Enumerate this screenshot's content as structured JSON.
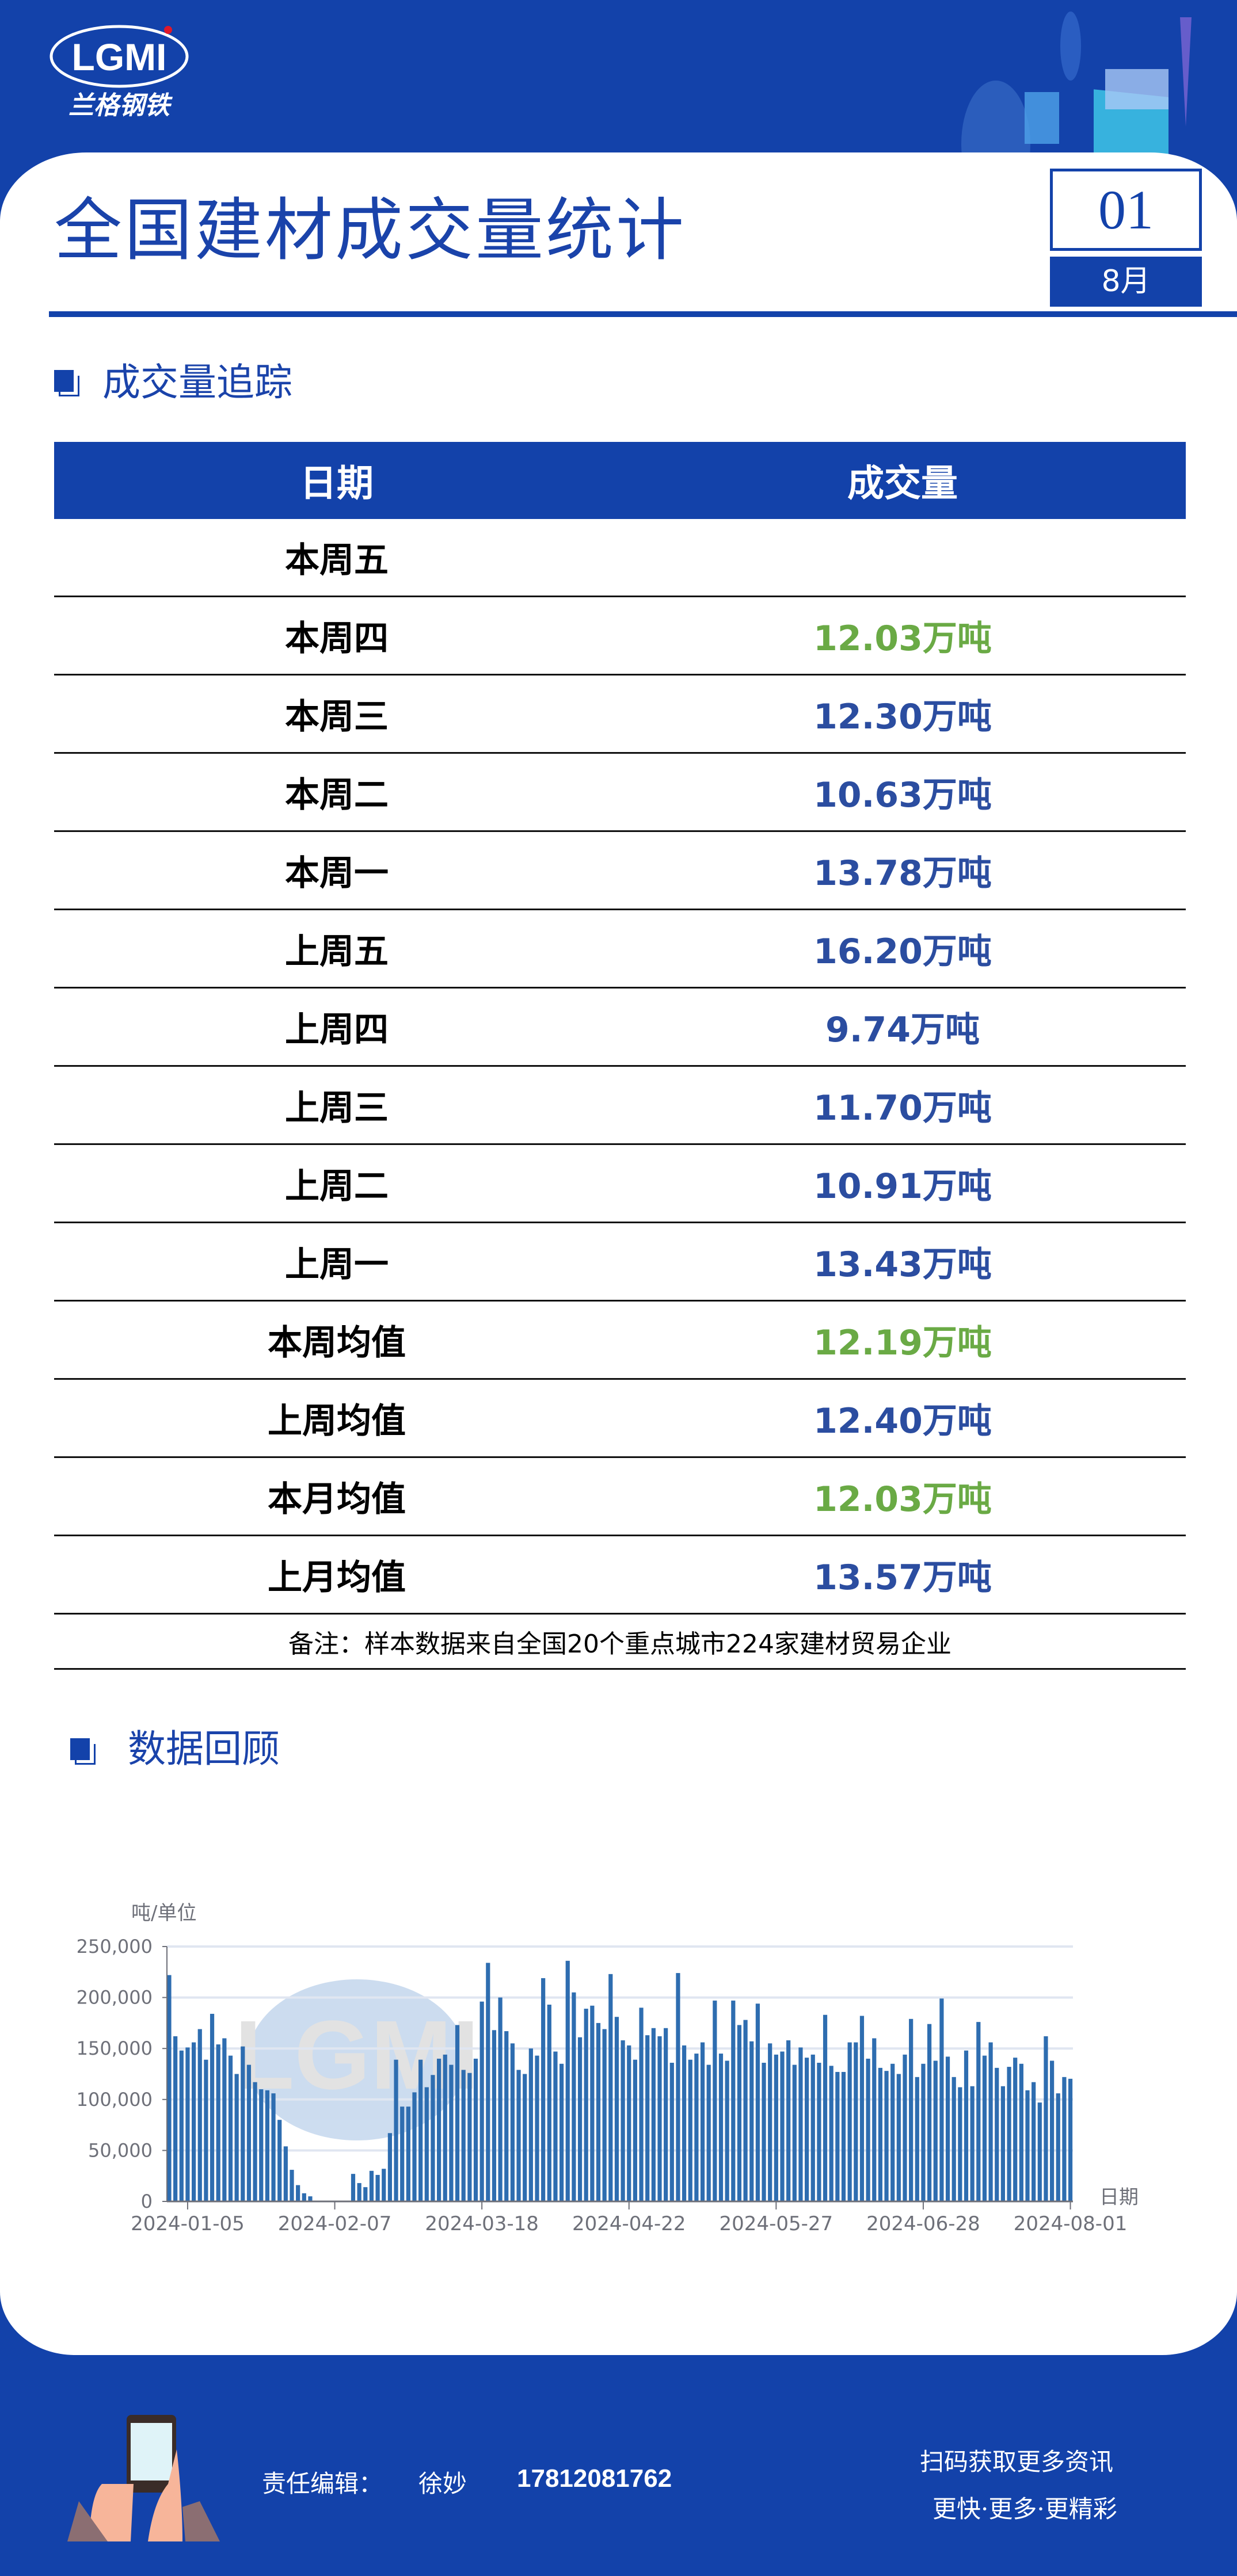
{
  "brand": {
    "logo_text": "LGMI",
    "logo_cn": "兰格钢铁",
    "colors": {
      "primary": "#1342aa",
      "green": "#6aaa45",
      "value_blue": "#2b4da0"
    }
  },
  "header": {
    "title": "全国建材成交量统计",
    "issue": "01",
    "month": "8月"
  },
  "section1": {
    "title": "成交量追踪"
  },
  "table": {
    "headers": [
      "日期",
      "成交量"
    ],
    "rows": [
      {
        "label": "本周五",
        "value": "",
        "highlight": false
      },
      {
        "label": "本周四",
        "value": "12.03万吨",
        "highlight": true
      },
      {
        "label": "本周三",
        "value": "12.30万吨",
        "highlight": false
      },
      {
        "label": "本周二",
        "value": "10.63万吨",
        "highlight": false
      },
      {
        "label": "本周一",
        "value": "13.78万吨",
        "highlight": false
      },
      {
        "label": "上周五",
        "value": "16.20万吨",
        "highlight": false
      },
      {
        "label": "上周四",
        "value": "9.74万吨",
        "highlight": false
      },
      {
        "label": "上周三",
        "value": "11.70万吨",
        "highlight": false
      },
      {
        "label": "上周二",
        "value": "10.91万吨",
        "highlight": false
      },
      {
        "label": "上周一",
        "value": "13.43万吨",
        "highlight": false
      },
      {
        "label": "本周均值",
        "value": "12.19万吨",
        "highlight": true
      },
      {
        "label": "上周均值",
        "value": "12.40万吨",
        "highlight": false
      },
      {
        "label": "本月均值",
        "value": "12.03万吨",
        "highlight": true
      },
      {
        "label": "上月均值",
        "value": "13.57万吨",
        "highlight": false
      }
    ],
    "note": "备注：样本数据来自全国20个重点城市224家建材贸易企业"
  },
  "section2": {
    "title": "数据回顾"
  },
  "chart_data": {
    "type": "bar",
    "ylabel": "吨/单位",
    "xlabel": "日期",
    "ylim": [
      0,
      250000
    ],
    "yticks": [
      "0",
      "50,000",
      "100,000",
      "150,000",
      "200,000",
      "250,000"
    ],
    "xtick_labels": [
      "2024-01-05",
      "2024-02-07",
      "2024-03-18",
      "2024-04-22",
      "2024-05-27",
      "2024-06-28",
      "2024-08-01"
    ],
    "grid": true,
    "bar_color": "#2e6db0",
    "values": [
      222000,
      162000,
      148000,
      151000,
      156000,
      169000,
      139000,
      184000,
      154000,
      160000,
      143000,
      125000,
      152000,
      134000,
      117000,
      110000,
      109000,
      106000,
      80000,
      54000,
      31000,
      16000,
      8000,
      5000,
      0,
      0,
      0,
      0,
      0,
      0,
      27000,
      18000,
      14000,
      30000,
      26000,
      32000,
      67000,
      139000,
      93000,
      93000,
      107000,
      139000,
      112000,
      124000,
      140000,
      144000,
      134000,
      173000,
      129000,
      126000,
      140000,
      196000,
      234000,
      168000,
      200000,
      167000,
      155000,
      129000,
      125000,
      150000,
      143000,
      219000,
      193000,
      147000,
      135000,
      236000,
      205000,
      161000,
      189000,
      192000,
      175000,
      169000,
      223000,
      181000,
      158000,
      153000,
      139000,
      190000,
      163000,
      170000,
      162000,
      170000,
      136000,
      224000,
      153000,
      139000,
      145000,
      156000,
      134000,
      197000,
      145000,
      138000,
      197000,
      173000,
      178000,
      157000,
      194000,
      136000,
      155000,
      144000,
      147000,
      158000,
      134000,
      151000,
      141000,
      144000,
      136000,
      183000,
      133000,
      127000,
      127000,
      156000,
      156000,
      182000,
      140000,
      160000,
      131000,
      128000,
      135000,
      125000,
      144000,
      179000,
      122000,
      135000,
      174000,
      138000,
      199000,
      142000,
      122000,
      112000,
      148000,
      113000,
      176000,
      143000,
      156000,
      131000,
      113000,
      132000,
      141000,
      135000,
      109000,
      117000,
      97000,
      162000,
      138000,
      106000,
      122000,
      120300
    ]
  },
  "footer": {
    "editor_label": "责任编辑：",
    "editor_name": "徐妙",
    "phone": "17812081762",
    "cta": "扫码获取更多资讯",
    "slogan": "更快·更多·更精彩"
  }
}
